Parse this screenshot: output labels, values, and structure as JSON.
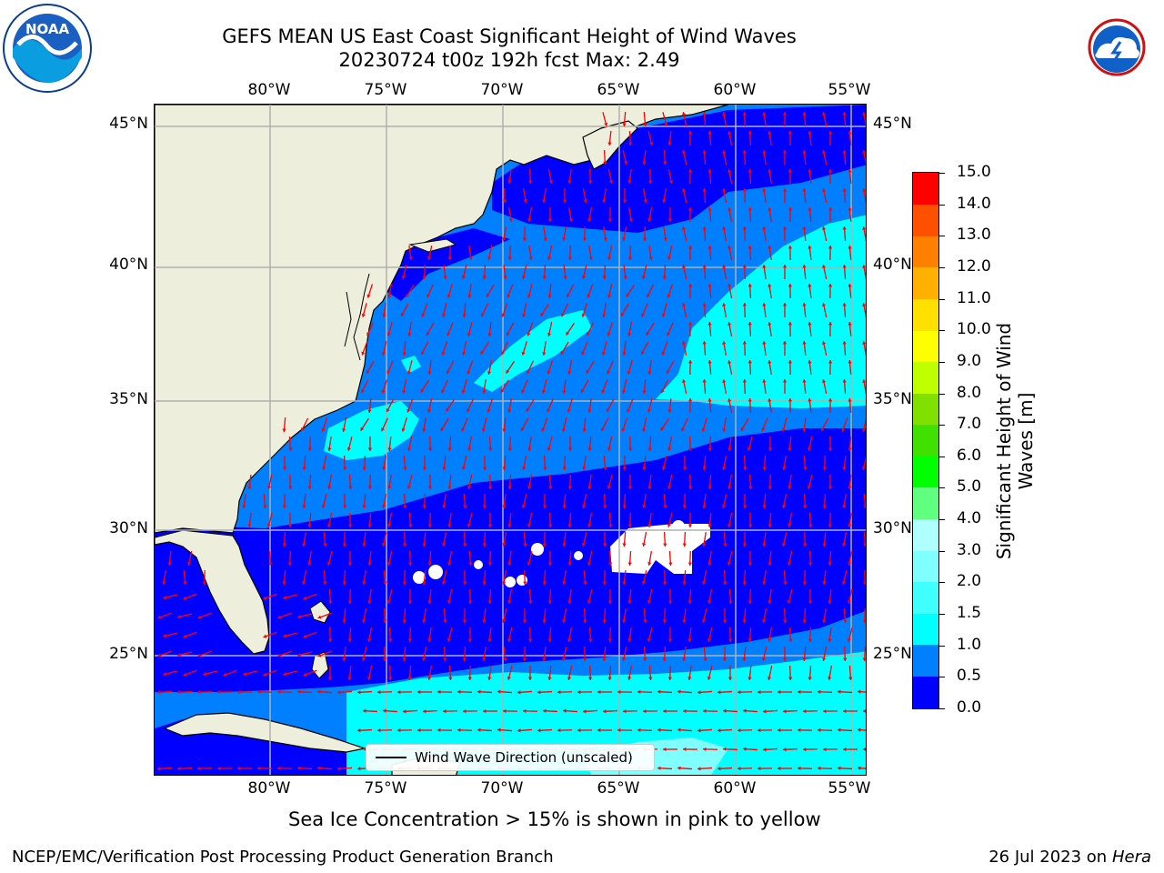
{
  "header": {
    "title_line1": "GEFS MEAN US East Coast Significant Height of Wind Waves",
    "title_line2": "20230724 t00z 192h fcst   Max: 2.49"
  },
  "logos": {
    "left": {
      "name": "noaa-logo",
      "text": "NOAA"
    },
    "right": {
      "name": "nws-logo",
      "text": "NATIONAL WEATHER SERVICE"
    }
  },
  "map": {
    "longitude_labels": [
      "80°W",
      "75°W",
      "70°W",
      "65°W",
      "60°W",
      "55°W"
    ],
    "latitude_labels": [
      "45°N",
      "40°N",
      "35°N",
      "30°N",
      "25°N"
    ],
    "colors": {
      "land": "#eeeedd",
      "coast": "#000000",
      "grid": "#b0b0b0",
      "arrow": "#ff0000",
      "no_data": "#ffffff"
    },
    "legend": {
      "label": "Wind Wave Direction (unscaled)"
    }
  },
  "colorbar": {
    "label": "Significant Height of Wind Waves [m]",
    "label_line1": "Significant Height of Wind",
    "label_line2": "Waves [m]",
    "tick_labels": [
      "15.0",
      "14.0",
      "13.0",
      "12.0",
      "11.0",
      "10.0",
      "9.0",
      "8.0",
      "7.0",
      "6.0",
      "5.0",
      "4.0",
      "3.0",
      "2.0",
      "1.5",
      "1.0",
      "0.5",
      "0.0"
    ],
    "colors_bottom_to_top": [
      "#0000ff",
      "#0080ff",
      "#00ffff",
      "#40ffff",
      "#80ffff",
      "#b0ffff",
      "#60ff80",
      "#00ff00",
      "#40e000",
      "#80e000",
      "#c0ff00",
      "#ffff00",
      "#ffe000",
      "#ffb000",
      "#ff8000",
      "#ff5000",
      "#ff0000"
    ]
  },
  "notes": {
    "sea_ice": "Sea Ice Concentration > 15% is shown in pink to yellow"
  },
  "footer": {
    "left": "NCEP/EMC/Verification Post Processing Product Generation Branch",
    "right_date": "26 Jul 2023 on",
    "right_machine": "Hera"
  }
}
